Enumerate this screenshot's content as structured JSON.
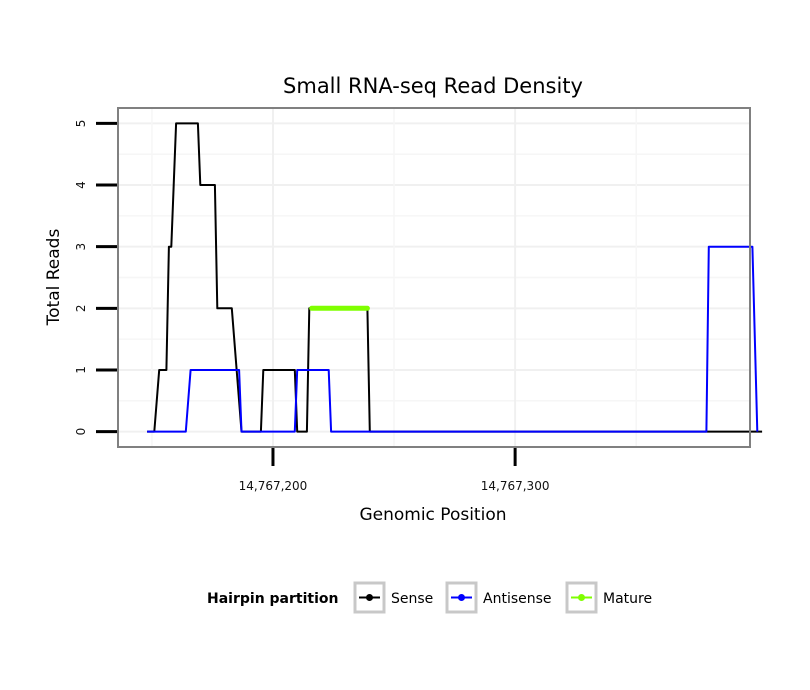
{
  "chart_data": {
    "type": "line",
    "title": "Small RNA-seq Read Density",
    "xlabel": "Genomic Position",
    "ylabel": "Total Reads",
    "xlim": [
      14767136,
      14767397
    ],
    "ylim": [
      -0.25,
      5.25
    ],
    "x_ticks": [
      14767200,
      14767300
    ],
    "x_tick_labels": [
      "14,767,200",
      "14,767,300"
    ],
    "y_ticks": [
      0,
      1,
      2,
      3,
      4,
      5
    ],
    "y_tick_labels": [
      "0",
      "1",
      "2",
      "3",
      "4",
      "5"
    ],
    "grid": true,
    "legend": {
      "title": "Hairpin partition",
      "position": "bottom",
      "entries": [
        "Sense",
        "Antisense",
        "Mature"
      ]
    },
    "series": [
      {
        "name": "Sense",
        "color": "#000000",
        "x": [
          14767148,
          14767151,
          14767153,
          14767156,
          14767157,
          14767158,
          14767159,
          14767160,
          14767162,
          14767169,
          14767170,
          14767176,
          14767177,
          14767182,
          14767183,
          14767187,
          14767188,
          14767190,
          14767195,
          14767196,
          14767209,
          14767210,
          14767214,
          14767215,
          14767217,
          14767239,
          14767240,
          14767402
        ],
        "y": [
          0,
          0,
          1,
          1,
          3,
          3,
          4,
          5,
          5,
          5,
          4,
          4,
          2,
          2,
          2,
          0,
          0,
          0,
          0,
          1,
          1,
          0,
          0,
          2,
          2,
          2,
          0,
          0
        ]
      },
      {
        "name": "Antisense",
        "color": "#0000ff",
        "x": [
          14767148,
          14767164,
          14767166,
          14767186,
          14767187,
          14767195,
          14767209,
          14767210,
          14767223,
          14767224,
          14767232,
          14767379,
          14767380,
          14767398,
          14767400
        ],
        "y": [
          0,
          0,
          1,
          1,
          0,
          0,
          0,
          1,
          1,
          0,
          0,
          0,
          3,
          3,
          0
        ]
      },
      {
        "name": "Mature",
        "color": "#7fff00",
        "x": [
          14767216,
          14767239
        ],
        "y": [
          2,
          2
        ]
      }
    ]
  }
}
